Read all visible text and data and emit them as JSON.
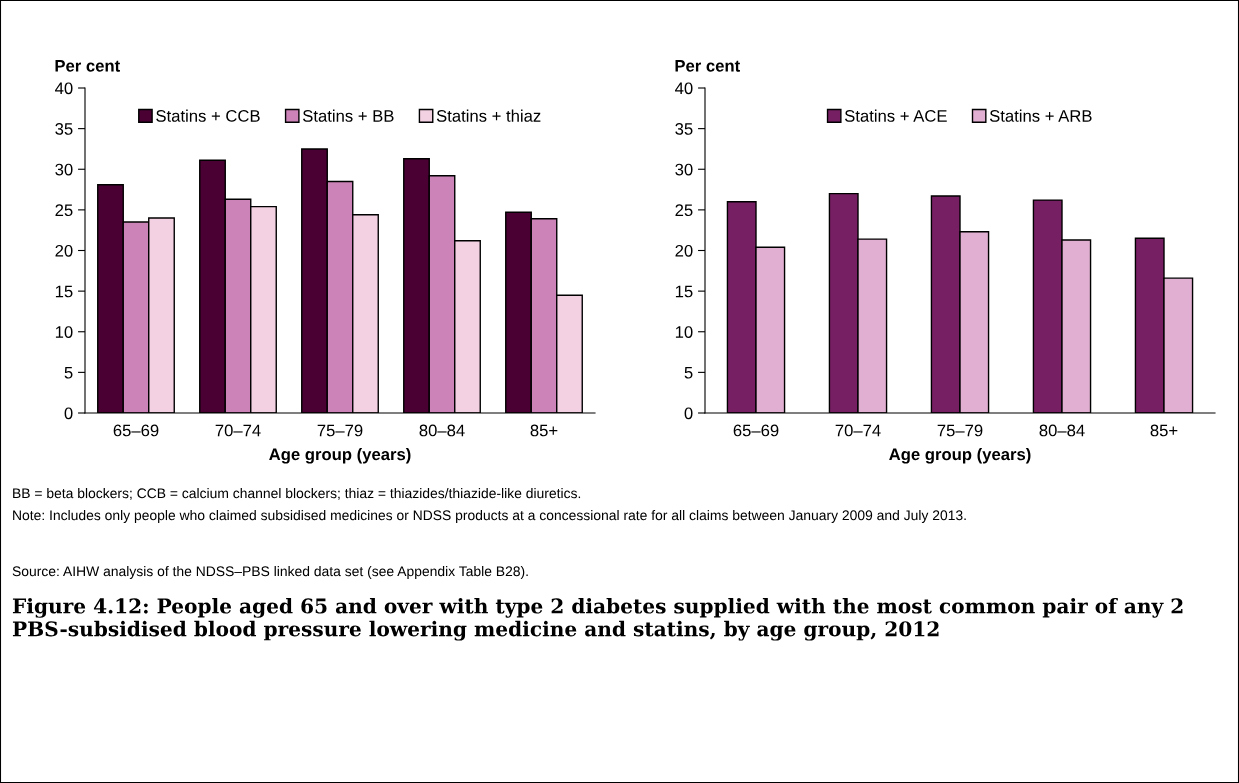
{
  "chart_data": [
    {
      "type": "bar",
      "title": "Figure 4.12: People aged 65 and over with type 2 diabetes supplied with the most common pair of any 2 PBS-subsidised blood pressure lowering medicine and statins, by age group, 2012",
      "ylabel": "Per cent",
      "xlabel": "Age group (years)",
      "categories": [
        "65–69",
        "70–74",
        "75–79",
        "80–84",
        "85+"
      ],
      "series": [
        {
          "name": "Statins + CCB",
          "color": "#4a0033",
          "values": [
            28.1,
            31.1,
            32.5,
            31.3,
            24.7
          ]
        },
        {
          "name": "Statins + BB",
          "color": "#cc84b8",
          "values": [
            23.5,
            26.3,
            28.5,
            29.2,
            23.9
          ]
        },
        {
          "name": "Statins + thiaz",
          "color": "#f3d1e2",
          "values": [
            24.0,
            25.4,
            24.4,
            21.2,
            14.5
          ]
        }
      ],
      "ylim": [
        0,
        40
      ],
      "yticks": [
        0,
        5,
        10,
        15,
        20,
        25,
        30,
        35,
        40
      ],
      "legend": "top",
      "grid": false,
      "annotations": [
        "BB = beta blockers; CCB = calcium channel blockers; thiaz = thiazides/thiazide-like diuretics.",
        "Note: Includes only people who claimed subsidised medicines or NDSS products at a concessional rate for all claims between January 2009 and July 2013.",
        "Source: AIHW analysis of the NDSS–PBS linked data set (see Appendix Table B28)."
      ]
    },
    {
      "type": "bar",
      "ylabel": "Per cent",
      "xlabel": "Age group (years)",
      "categories": [
        "65–69",
        "70–74",
        "75–79",
        "80–84",
        "85+"
      ],
      "series": [
        {
          "name": "Statins + ACE",
          "color": "#771f63",
          "values": [
            26.0,
            27.0,
            26.7,
            26.2,
            21.5
          ]
        },
        {
          "name": "Statins + ARB",
          "color": "#e1afd1",
          "values": [
            20.4,
            21.4,
            22.3,
            21.3,
            16.6
          ]
        }
      ],
      "ylim": [
        0,
        40
      ],
      "yticks": [
        0,
        5,
        10,
        15,
        20,
        25,
        30,
        35,
        40
      ],
      "legend": "top",
      "grid": false
    }
  ]
}
